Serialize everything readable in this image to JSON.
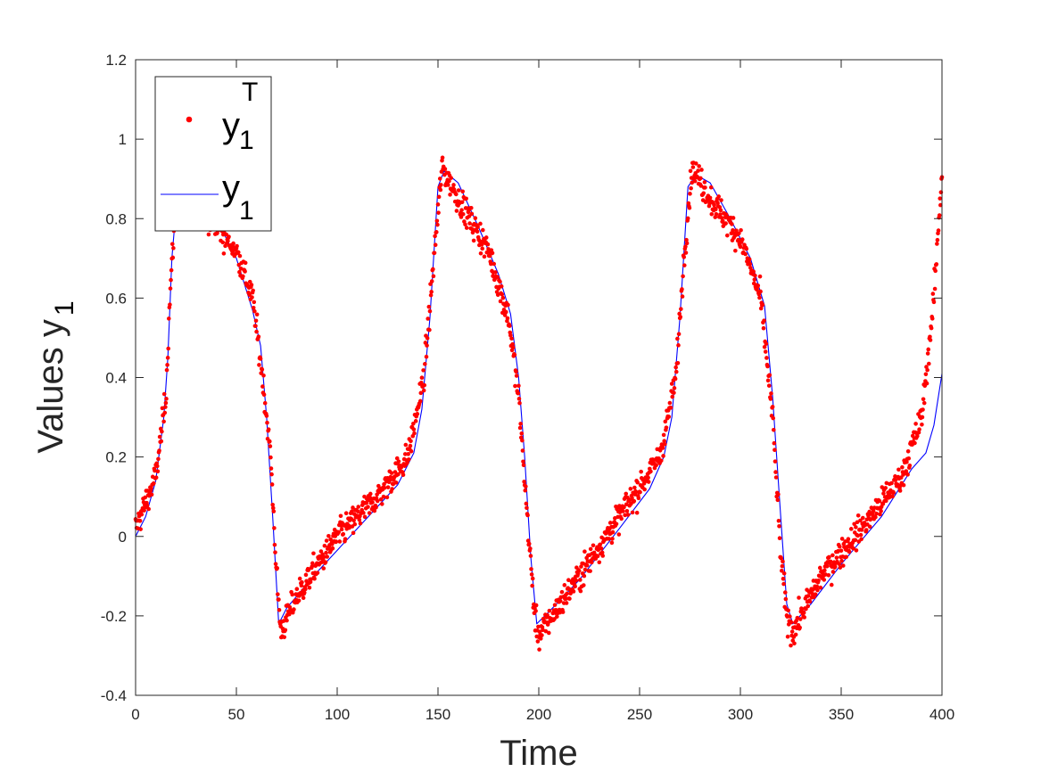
{
  "chart_data": {
    "type": "scatter",
    "xlabel": "Time",
    "ylabel": {
      "text": "Values y",
      "sub": "1"
    },
    "xlim": [
      0,
      400
    ],
    "ylim": [
      -0.4,
      1.2
    ],
    "xticks": [
      0,
      50,
      100,
      150,
      200,
      250,
      300,
      350,
      400
    ],
    "yticks": [
      -0.4,
      -0.2,
      0,
      0.2,
      0.4,
      0.6,
      0.8,
      1,
      1.2
    ],
    "ytick_labels": [
      "-0.4",
      "-0.2",
      "0",
      "0.2",
      "0.4",
      "0.6",
      "0.8",
      "1",
      "1.2"
    ],
    "grid": false,
    "legend_position": "top-left",
    "colors": {
      "observed": "#ff0000",
      "model": "#0000ff",
      "axis": "#262626"
    },
    "series": [
      {
        "name": {
          "base": "y",
          "sub": "1",
          "sup": "T"
        },
        "style": "markers",
        "note": "noisy observations approximately 1 sample per 0.25 time units",
        "keypoints": [
          [
            0,
            0.02
          ],
          [
            10,
            0.15
          ],
          [
            15,
            0.35
          ],
          [
            17,
            0.6
          ],
          [
            20,
            0.85
          ],
          [
            25,
            0.85
          ],
          [
            40,
            0.78
          ],
          [
            50,
            0.72
          ],
          [
            58,
            0.6
          ],
          [
            63,
            0.4
          ],
          [
            67,
            0.2
          ],
          [
            70,
            -0.1
          ],
          [
            72,
            -0.24
          ],
          [
            80,
            -0.15
          ],
          [
            100,
            0.0
          ],
          [
            120,
            0.1
          ],
          [
            135,
            0.2
          ],
          [
            143,
            0.4
          ],
          [
            148,
            0.7
          ],
          [
            152,
            0.93
          ],
          [
            160,
            0.85
          ],
          [
            175,
            0.72
          ],
          [
            185,
            0.55
          ],
          [
            190,
            0.35
          ],
          [
            195,
            0.0
          ],
          [
            198,
            -0.2
          ],
          [
            200,
            -0.25
          ],
          [
            220,
            -0.1
          ],
          [
            240,
            0.05
          ],
          [
            260,
            0.2
          ],
          [
            268,
            0.4
          ],
          [
            272,
            0.7
          ],
          [
            276,
            0.93
          ],
          [
            285,
            0.85
          ],
          [
            300,
            0.75
          ],
          [
            310,
            0.6
          ],
          [
            316,
            0.3
          ],
          [
            320,
            -0.05
          ],
          [
            323,
            -0.2
          ],
          [
            326,
            -0.24
          ],
          [
            340,
            -0.1
          ],
          [
            360,
            0.02
          ],
          [
            380,
            0.15
          ],
          [
            390,
            0.3
          ],
          [
            396,
            0.6
          ],
          [
            400,
            0.92
          ]
        ]
      },
      {
        "name": {
          "base": "y",
          "sub": "1"
        },
        "style": "line",
        "points": [
          [
            0,
            0.0
          ],
          [
            5,
            0.05
          ],
          [
            10,
            0.14
          ],
          [
            14,
            0.3
          ],
          [
            16,
            0.45
          ],
          [
            18,
            0.7
          ],
          [
            20,
            0.82
          ],
          [
            25,
            0.86
          ],
          [
            30,
            0.85
          ],
          [
            40,
            0.8
          ],
          [
            50,
            0.7
          ],
          [
            58,
            0.57
          ],
          [
            62,
            0.48
          ],
          [
            65,
            0.3
          ],
          [
            68,
            0.05
          ],
          [
            71,
            -0.22
          ],
          [
            75,
            -0.18
          ],
          [
            90,
            -0.09
          ],
          [
            110,
            0.02
          ],
          [
            130,
            0.13
          ],
          [
            138,
            0.21
          ],
          [
            142,
            0.32
          ],
          [
            146,
            0.55
          ],
          [
            150,
            0.88
          ],
          [
            153,
            0.92
          ],
          [
            160,
            0.89
          ],
          [
            170,
            0.78
          ],
          [
            180,
            0.66
          ],
          [
            186,
            0.56
          ],
          [
            190,
            0.4
          ],
          [
            193,
            0.2
          ],
          [
            196,
            -0.05
          ],
          [
            199,
            -0.22
          ],
          [
            205,
            -0.19
          ],
          [
            220,
            -0.11
          ],
          [
            240,
            0.02
          ],
          [
            255,
            0.12
          ],
          [
            262,
            0.2
          ],
          [
            266,
            0.3
          ],
          [
            270,
            0.55
          ],
          [
            274,
            0.88
          ],
          [
            278,
            0.91
          ],
          [
            285,
            0.89
          ],
          [
            295,
            0.8
          ],
          [
            305,
            0.7
          ],
          [
            312,
            0.58
          ],
          [
            316,
            0.35
          ],
          [
            320,
            0.05
          ],
          [
            323,
            -0.17
          ],
          [
            326,
            -0.22
          ],
          [
            335,
            -0.17
          ],
          [
            350,
            -0.07
          ],
          [
            370,
            0.05
          ],
          [
            385,
            0.17
          ],
          [
            392,
            0.21
          ],
          [
            396,
            0.28
          ],
          [
            400,
            0.41
          ]
        ]
      }
    ]
  }
}
